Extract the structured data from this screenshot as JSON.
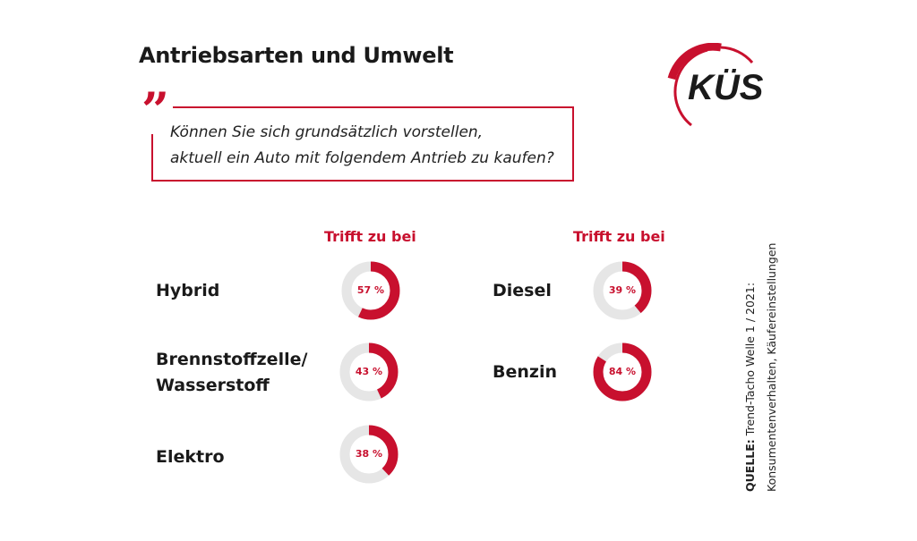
{
  "title": "Antriebsarten und Umwelt",
  "question": {
    "line1": "Können Sie sich grundsätzlich vorstellen,",
    "line2": "aktuell ein Auto mit folgendem Antrieb zu kaufen?"
  },
  "logo": {
    "text": "KÜS"
  },
  "colors": {
    "accent": "#c8102e",
    "track": "#e6e6e6"
  },
  "source": {
    "label": "QUELLE:",
    "line1": "Trend-Tacho Welle 1 / 2021:",
    "line2": "Konsumentenverhalten, Käufereinstellungen"
  },
  "chart_data": {
    "type": "donut",
    "column_header": "Trifft zu bei",
    "series": [
      {
        "name": "Hybrid",
        "value": 57,
        "label": "57 %"
      },
      {
        "name": "Brennstoffzelle/ Wasserstoff",
        "line1": "Brennstoffzelle/",
        "line2": "Wasserstoff",
        "value": 43,
        "label": "43 %"
      },
      {
        "name": "Elektro",
        "value": 38,
        "label": "38 %"
      },
      {
        "name": "Diesel",
        "value": 39,
        "label": "39 %"
      },
      {
        "name": "Benzin",
        "value": 84,
        "label": "84 %"
      }
    ],
    "unit": "%",
    "range": [
      0,
      100
    ]
  }
}
